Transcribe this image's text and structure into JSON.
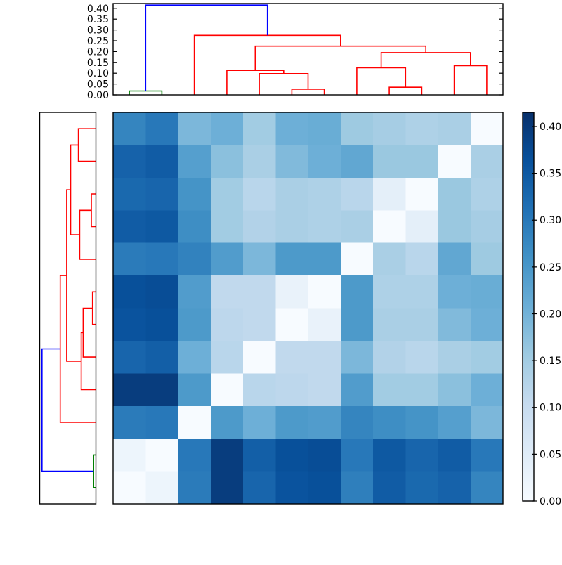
{
  "meta": {
    "description": "Matplotlib-style clustered distance-matrix heatmap with top and left dendrograms and a Blues colorbar",
    "background": "#ffffff",
    "frame_color": "#000000"
  },
  "chart_data": {
    "type": "heatmap",
    "subtype": "clustered-distance-matrix",
    "colormap": "Blues",
    "vmin": 0.0,
    "vmax": 0.415,
    "size": 12,
    "grid": false,
    "diagonal_note": "zero-valued (white) cells run from bottom-left to top-right; displayed row order is the reverse of column order",
    "matrix": [
      [
        0.28,
        0.3,
        0.19,
        0.205,
        0.15,
        0.205,
        0.21,
        0.155,
        0.145,
        0.135,
        0.14,
        0.0
      ],
      [
        0.335,
        0.345,
        0.235,
        0.175,
        0.14,
        0.185,
        0.205,
        0.22,
        0.16,
        0.16,
        0.0,
        0.14
      ],
      [
        0.325,
        0.33,
        0.256,
        0.15,
        0.12,
        0.14,
        0.135,
        0.12,
        0.04,
        0.0,
        0.16,
        0.135
      ],
      [
        0.345,
        0.35,
        0.266,
        0.15,
        0.13,
        0.14,
        0.135,
        0.14,
        0.0,
        0.04,
        0.16,
        0.145
      ],
      [
        0.295,
        0.3,
        0.285,
        0.24,
        0.19,
        0.245,
        0.245,
        0.0,
        0.14,
        0.12,
        0.22,
        0.155
      ],
      [
        0.365,
        0.37,
        0.24,
        0.11,
        0.11,
        0.03,
        0.0,
        0.245,
        0.135,
        0.135,
        0.205,
        0.21
      ],
      [
        0.36,
        0.365,
        0.245,
        0.115,
        0.11,
        0.0,
        0.03,
        0.245,
        0.14,
        0.14,
        0.185,
        0.205
      ],
      [
        0.33,
        0.34,
        0.205,
        0.12,
        0.0,
        0.11,
        0.11,
        0.19,
        0.13,
        0.12,
        0.14,
        0.15
      ],
      [
        0.395,
        0.395,
        0.245,
        0.0,
        0.12,
        0.115,
        0.11,
        0.24,
        0.15,
        0.15,
        0.175,
        0.205
      ],
      [
        0.295,
        0.3,
        0.0,
        0.245,
        0.205,
        0.245,
        0.24,
        0.28,
        0.266,
        0.256,
        0.235,
        0.19
      ],
      [
        0.02,
        0.0,
        0.3,
        0.395,
        0.34,
        0.365,
        0.37,
        0.3,
        0.35,
        0.33,
        0.345,
        0.3
      ],
      [
        0.0,
        0.02,
        0.295,
        0.395,
        0.33,
        0.36,
        0.365,
        0.29,
        0.345,
        0.325,
        0.335,
        0.28
      ]
    ],
    "colormap_stops": [
      "#f7fbff",
      "#deebf7",
      "#c6dbef",
      "#9ecae1",
      "#6baed6",
      "#4292c6",
      "#2171b5",
      "#08519c",
      "#08306b"
    ],
    "axis_tick_values": [
      0.0,
      0.05,
      0.1,
      0.15,
      0.2,
      0.25,
      0.3,
      0.35,
      0.4
    ],
    "axis_tick_labels": [
      "0.00",
      "0.05",
      "0.10",
      "0.15",
      "0.20",
      "0.25",
      "0.30",
      "0.35",
      "0.40"
    ],
    "link_colors": {
      "red": "#ff0000",
      "green": "#007f00",
      "blue": "#0000ff"
    },
    "top_dendrogram": {
      "orientation": "top",
      "ylim": [
        0.0,
        0.4221
      ],
      "links": [
        {
          "id": "A",
          "p1": 0.5,
          "h1": 0.0,
          "p2": 1.5,
          "h2": 0.0,
          "h": 0.018,
          "color": "green"
        },
        {
          "id": "G",
          "p1": 5.5,
          "h1": 0.0,
          "p2": 6.5,
          "h2": 0.0,
          "h": 0.026,
          "color": "red"
        },
        {
          "id": "J",
          "p1": 8.5,
          "h1": 0.0,
          "p2": 9.5,
          "h2": 0.0,
          "h": 0.035,
          "color": "red"
        },
        {
          "id": "F",
          "p1": 4.5,
          "h1": 0.0,
          "p2": 6.0,
          "h2": 0.026,
          "h": 0.098,
          "color": "red"
        },
        {
          "id": "D",
          "p1": 3.5,
          "h1": 0.0,
          "p2": 5.25,
          "h2": 0.098,
          "h": 0.113,
          "color": "red"
        },
        {
          "id": "H",
          "p1": 7.5,
          "h1": 0.0,
          "p2": 9.0,
          "h2": 0.035,
          "h": 0.125,
          "color": "red"
        },
        {
          "id": "I",
          "p1": 10.5,
          "h1": 0.0,
          "p2": 11.5,
          "h2": 0.0,
          "h": 0.135,
          "color": "red"
        },
        {
          "id": "E",
          "p1": 8.25,
          "h1": 0.125,
          "p2": 11.0,
          "h2": 0.135,
          "h": 0.195,
          "color": "red"
        },
        {
          "id": "C",
          "p1": 4.375,
          "h1": 0.113,
          "p2": 9.625,
          "h2": 0.195,
          "h": 0.225,
          "color": "red"
        },
        {
          "id": "B",
          "p1": 2.5,
          "h1": 0.0,
          "p2": 7.0,
          "h2": 0.225,
          "h": 0.275,
          "color": "red"
        },
        {
          "id": "R",
          "p1": 1.0,
          "h1": 0.018,
          "p2": 4.75,
          "h2": 0.275,
          "h": 0.415,
          "color": "blue"
        }
      ]
    },
    "left_dendrogram": {
      "orientation": "left",
      "xlim": [
        0.0,
        0.433
      ],
      "links": [
        {
          "id": "A2",
          "p1": 10.5,
          "h1": 0.0,
          "p2": 11.5,
          "h2": 0.0,
          "h": 0.018,
          "color": "green"
        },
        {
          "id": "I2",
          "p1": 0.5,
          "h1": 0.0,
          "p2": 1.5,
          "h2": 0.0,
          "h": 0.135,
          "color": "red"
        },
        {
          "id": "J2",
          "p1": 2.5,
          "h1": 0.0,
          "p2": 3.5,
          "h2": 0.0,
          "h": 0.035,
          "color": "red"
        },
        {
          "id": "G2",
          "p1": 5.5,
          "h1": 0.0,
          "p2": 6.5,
          "h2": 0.0,
          "h": 0.026,
          "color": "red"
        },
        {
          "id": "H2",
          "p1": 3.0,
          "h1": 0.035,
          "p2": 4.5,
          "h2": 0.0,
          "h": 0.125,
          "color": "red"
        },
        {
          "id": "F2",
          "p1": 6.0,
          "h1": 0.026,
          "p2": 7.5,
          "h2": 0.0,
          "h": 0.098,
          "color": "red"
        },
        {
          "id": "D2",
          "p1": 6.75,
          "h1": 0.098,
          "p2": 8.5,
          "h2": 0.0,
          "h": 0.113,
          "color": "red"
        },
        {
          "id": "E2",
          "p1": 1.0,
          "h1": 0.135,
          "p2": 3.75,
          "h2": 0.125,
          "h": 0.195,
          "color": "red"
        },
        {
          "id": "C2",
          "p1": 2.375,
          "h1": 0.195,
          "p2": 7.625,
          "h2": 0.113,
          "h": 0.225,
          "color": "red"
        },
        {
          "id": "B2",
          "p1": 5.0,
          "h1": 0.225,
          "p2": 9.5,
          "h2": 0.0,
          "h": 0.275,
          "color": "red"
        },
        {
          "id": "R2",
          "p1": 7.25,
          "h1": 0.275,
          "p2": 11.0,
          "h2": 0.018,
          "h": 0.415,
          "color": "blue"
        }
      ]
    },
    "colorbar": {
      "orientation": "vertical",
      "vmin": 0.0,
      "vmax": 0.415,
      "ticks_side": "right"
    }
  }
}
